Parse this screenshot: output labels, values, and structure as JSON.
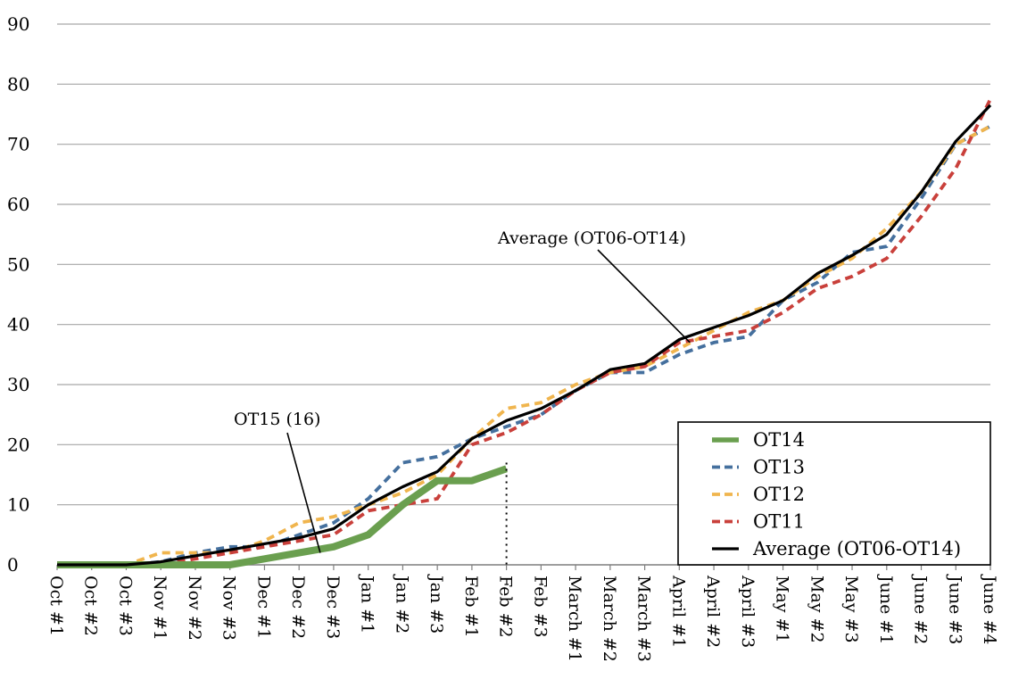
{
  "chart_data": {
    "type": "line",
    "title": "",
    "xlabel": "",
    "ylabel": "",
    "ylim": [
      0,
      90
    ],
    "yticks": [
      "0",
      "10",
      "20",
      "30",
      "40",
      "50",
      "60",
      "70",
      "80",
      "90"
    ],
    "grid": true,
    "legend_position": "bottom-right",
    "categories": [
      "Oct #1",
      "Oct #2",
      "Oct #3",
      "Nov #1",
      "Nov #2",
      "Nov #3",
      "Dec #1",
      "Dec #2",
      "Dec #3",
      "Jan #1",
      "Jan #2",
      "Jan #3",
      "Feb #1",
      "Feb #2",
      "Feb #3",
      "March #1",
      "March #2",
      "March #3",
      "April #1",
      "April #2",
      "April #3",
      "May #1",
      "May #2",
      "May #3",
      "June #1",
      "June #2",
      "June #3",
      "June #4"
    ],
    "series": [
      {
        "name": "OT14",
        "color": "#6a9f4f",
        "style": "solid-thick",
        "values": [
          0,
          0,
          0,
          0,
          0,
          0,
          1,
          2,
          3,
          5,
          10,
          14,
          14,
          16,
          null,
          null,
          null,
          null,
          null,
          null,
          null,
          null,
          null,
          null,
          null,
          null,
          null,
          null
        ]
      },
      {
        "name": "OT13",
        "color": "#45709e",
        "style": "dashed",
        "values": [
          0,
          0,
          0,
          0.5,
          2,
          3,
          3,
          5,
          7,
          11,
          17,
          18,
          21,
          23,
          25,
          29,
          32,
          32,
          35,
          37,
          38,
          44,
          47,
          52,
          53,
          61,
          70,
          73
        ]
      },
      {
        "name": "OT12",
        "color": "#f0b54e",
        "style": "dashed",
        "values": [
          0,
          0,
          0,
          2,
          2,
          2,
          4,
          7,
          8,
          10,
          12,
          15,
          21,
          26,
          27,
          30,
          32,
          33,
          36,
          39,
          42,
          44,
          48,
          51,
          56,
          62,
          70,
          73
        ]
      },
      {
        "name": "OT11",
        "color": "#c9403b",
        "style": "dashed",
        "values": [
          0,
          0,
          0,
          0,
          1,
          2,
          3,
          4,
          5,
          9,
          10,
          11,
          20,
          22,
          25,
          29,
          32,
          33,
          37,
          38,
          39,
          42,
          46,
          48,
          51,
          58,
          66,
          77.5
        ]
      },
      {
        "name": "Average (OT06-OT14)",
        "color": "#000000",
        "style": "solid",
        "values": [
          0,
          0,
          0,
          0.5,
          1.5,
          2.5,
          3.5,
          4.5,
          6,
          10,
          13,
          15.5,
          21,
          24,
          26,
          29,
          32.5,
          33.5,
          37.5,
          39.5,
          41.5,
          44,
          48.5,
          51.5,
          55,
          62,
          70.5,
          76.5
        ]
      }
    ],
    "annotations": [
      {
        "text": "Average (OT06-OT14)",
        "points_to": {
          "category": "April #1",
          "value": 37
        }
      },
      {
        "text": "OT15 (16)",
        "points_to": {
          "category": "Dec #3",
          "value": 2
        }
      }
    ],
    "marker_line": {
      "category": "Feb #2",
      "value": 17,
      "style": "dotted"
    }
  }
}
